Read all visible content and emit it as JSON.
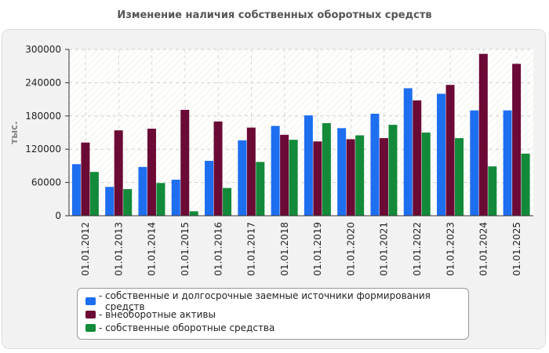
{
  "chart_data": {
    "type": "bar",
    "title": "Изменение наличия собственных оборотных средств",
    "xlabel": "",
    "ylabel": "тыс.",
    "ylim": [
      0,
      300000
    ],
    "yticks": [
      0,
      60000,
      120000,
      180000,
      240000,
      300000
    ],
    "categories": [
      "01.01.2012",
      "01.01.2013",
      "01.01.2014",
      "01.01.2015",
      "01.01.2016",
      "01.01.2017",
      "01.01.2018",
      "01.01.2019",
      "01.01.2020",
      "01.01.2021",
      "01.01.2022",
      "01.01.2023",
      "01.01.2024",
      "01.01.2025"
    ],
    "series": [
      {
        "name": "собственные и долгосрочные заемные источники формирования средств",
        "color": "#1e6ef0",
        "values": [
          93000,
          52000,
          88000,
          65000,
          99000,
          136000,
          162000,
          181000,
          158000,
          184000,
          230000,
          220000,
          190000,
          190000
        ]
      },
      {
        "name": "внеоборотные активы",
        "color": "#6b0a35",
        "values": [
          132000,
          154000,
          157000,
          191000,
          170000,
          159000,
          146000,
          134000,
          138000,
          140000,
          208000,
          236000,
          292000,
          274000
        ]
      },
      {
        "name": "собственные оборотные средства",
        "color": "#128a3a",
        "values": [
          79000,
          48000,
          59000,
          8000,
          50000,
          97000,
          137000,
          167000,
          145000,
          164000,
          150000,
          140000,
          89000,
          112000
        ]
      }
    ],
    "legend_position": "bottom",
    "grid": true
  }
}
